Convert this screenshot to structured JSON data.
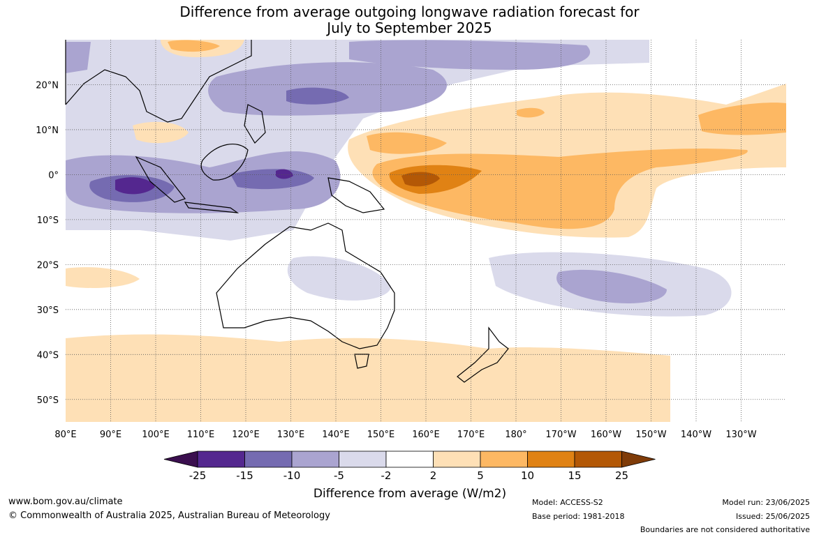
{
  "title_line1": "Difference from average outgoing longwave radiation forecast for",
  "title_line2": "July to September 2025",
  "map": {
    "lon_range": [
      80,
      240
    ],
    "lat_range": [
      -55,
      30
    ],
    "lon_labels": [
      "80°E",
      "90°E",
      "100°E",
      "110°E",
      "120°E",
      "130°E",
      "140°E",
      "150°E",
      "160°E",
      "170°E",
      "180°",
      "170°W",
      "160°W",
      "150°W",
      "140°W",
      "130°W"
    ],
    "lat_labels": [
      "20°N",
      "10°N",
      "0°",
      "10°S",
      "20°S",
      "30°S",
      "40°S",
      "50°S"
    ],
    "lat_values": [
      20,
      10,
      0,
      -10,
      -20,
      -30,
      -40,
      -50
    ]
  },
  "colorbar": {
    "colors": [
      "#3b0f4f",
      "#54278f",
      "#756bb1",
      "#aaa4d0",
      "#dadaeb",
      "#ffffff",
      "#fee0b6",
      "#fdb863",
      "#e08214",
      "#b35806",
      "#7f3b08"
    ],
    "tick_labels": [
      "-25",
      "-15",
      "-10",
      "-5",
      "-2",
      "2",
      "5",
      "10",
      "15",
      "25"
    ],
    "label": "Difference from average (W/m2)"
  },
  "footer": {
    "url": "www.bom.gov.au/climate",
    "copyright": "© Commonwealth of Australia 2025, Australian Bureau of Meteorology",
    "model": "Model: ACCESS-S2",
    "base_period": "Base period: 1981-2018",
    "model_run": "Model run: 23/06/2025",
    "issued": "Issued: 25/06/2025",
    "disclaimer": "Boundaries are not considered authoritative"
  }
}
